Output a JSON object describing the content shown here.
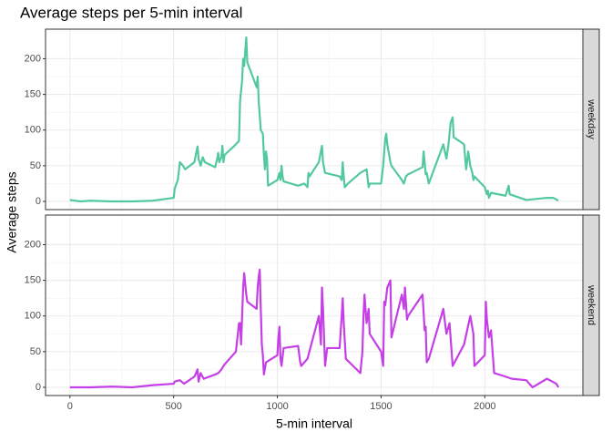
{
  "chart_data": {
    "type": "line",
    "title": "Average steps per 5-min interval",
    "x_label": "5-min interval",
    "y_label": "Average steps",
    "xlim": [
      -117.75,
      2472.75
    ],
    "xticks": [
      0,
      500,
      1000,
      1500,
      2000
    ],
    "ylim": [
      -11.5,
      241.5
    ],
    "yticks": [
      0,
      50,
      100,
      150,
      200
    ],
    "grid": true,
    "series": [
      {
        "name": "weekday",
        "color": "#52c99d",
        "x": [
          0,
          50,
          100,
          200,
          300,
          400,
          500,
          505,
          520,
          530,
          545,
          555,
          600,
          610,
          615,
          620,
          630,
          640,
          650,
          700,
          710,
          715,
          720,
          730,
          735,
          740,
          745,
          800,
          815,
          820,
          830,
          835,
          840,
          845,
          850,
          855,
          900,
          905,
          910,
          920,
          930,
          935,
          940,
          945,
          950,
          955,
          1000,
          1010,
          1015,
          1020,
          1025,
          1030,
          1100,
          1130,
          1145,
          1150,
          1155,
          1200,
          1215,
          1220,
          1230,
          1300,
          1310,
          1315,
          1320,
          1325,
          1340,
          1400,
          1430,
          1440,
          1445,
          1500,
          1510,
          1520,
          1525,
          1530,
          1545,
          1550,
          1600,
          1610,
          1620,
          1630,
          1645,
          1700,
          1705,
          1710,
          1715,
          1720,
          1730,
          1800,
          1815,
          1825,
          1835,
          1845,
          1850,
          1900,
          1910,
          1920,
          1930,
          1940,
          1945,
          1950,
          2000,
          2010,
          2015,
          2020,
          2030,
          2100,
          2115,
          2120,
          2200,
          2300,
          2330,
          2355
        ],
        "values": [
          2,
          0,
          1,
          0,
          0,
          1,
          5,
          18,
          30,
          55,
          50,
          45,
          55,
          70,
          77,
          60,
          50,
          62,
          55,
          48,
          60,
          68,
          55,
          62,
          78,
          55,
          65,
          80,
          85,
          140,
          170,
          200,
          190,
          210,
          230,
          195,
          160,
          175,
          140,
          100,
          95,
          65,
          45,
          70,
          60,
          22,
          30,
          40,
          30,
          50,
          35,
          28,
          22,
          25,
          20,
          40,
          35,
          55,
          78,
          55,
          40,
          35,
          30,
          55,
          35,
          20,
          25,
          40,
          45,
          20,
          25,
          25,
          50,
          88,
          95,
          80,
          55,
          50,
          30,
          25,
          35,
          38,
          40,
          48,
          70,
          55,
          38,
          40,
          25,
          80,
          60,
          80,
          110,
          118,
          90,
          80,
          45,
          70,
          50,
          40,
          30,
          35,
          20,
          10,
          15,
          5,
          12,
          8,
          22,
          10,
          2,
          5,
          5,
          1
        ]
      },
      {
        "name": "weekend",
        "color": "#c53fe6",
        "x": [
          0,
          100,
          200,
          300,
          400,
          500,
          505,
          530,
          550,
          600,
          615,
          620,
          630,
          645,
          700,
          715,
          730,
          745,
          800,
          815,
          820,
          825,
          830,
          835,
          840,
          845,
          850,
          855,
          900,
          905,
          910,
          915,
          920,
          925,
          930,
          935,
          945,
          1000,
          1005,
          1010,
          1015,
          1020,
          1030,
          1100,
          1110,
          1115,
          1130,
          1145,
          1200,
          1210,
          1215,
          1220,
          1230,
          1240,
          1300,
          1310,
          1315,
          1320,
          1330,
          1400,
          1410,
          1415,
          1420,
          1430,
          1440,
          1445,
          1500,
          1510,
          1515,
          1520,
          1530,
          1545,
          1550,
          1600,
          1610,
          1615,
          1625,
          1630,
          1700,
          1710,
          1715,
          1720,
          1730,
          1800,
          1815,
          1830,
          1845,
          1900,
          1930,
          1945,
          1950,
          2000,
          2005,
          2010,
          2020,
          2030,
          2045,
          2100,
          2130,
          2200,
          2230,
          2300,
          2345,
          2355
        ],
        "values": [
          0,
          0,
          1,
          0,
          3,
          5,
          8,
          10,
          5,
          15,
          25,
          8,
          20,
          12,
          18,
          20,
          25,
          32,
          50,
          90,
          90,
          60,
          100,
          140,
          160,
          145,
          130,
          120,
          110,
          140,
          155,
          165,
          110,
          60,
          45,
          18,
          35,
          45,
          70,
          85,
          40,
          30,
          55,
          58,
          35,
          30,
          35,
          40,
          100,
          60,
          140,
          110,
          30,
          55,
          55,
          100,
          125,
          90,
          40,
          20,
          50,
          100,
          130,
          90,
          110,
          75,
          50,
          30,
          120,
          115,
          140,
          150,
          70,
          130,
          110,
          140,
          95,
          100,
          130,
          80,
          85,
          35,
          40,
          110,
          75,
          90,
          30,
          60,
          100,
          75,
          30,
          45,
          120,
          95,
          70,
          80,
          20,
          15,
          12,
          10,
          0,
          12,
          5,
          0
        ]
      }
    ]
  }
}
